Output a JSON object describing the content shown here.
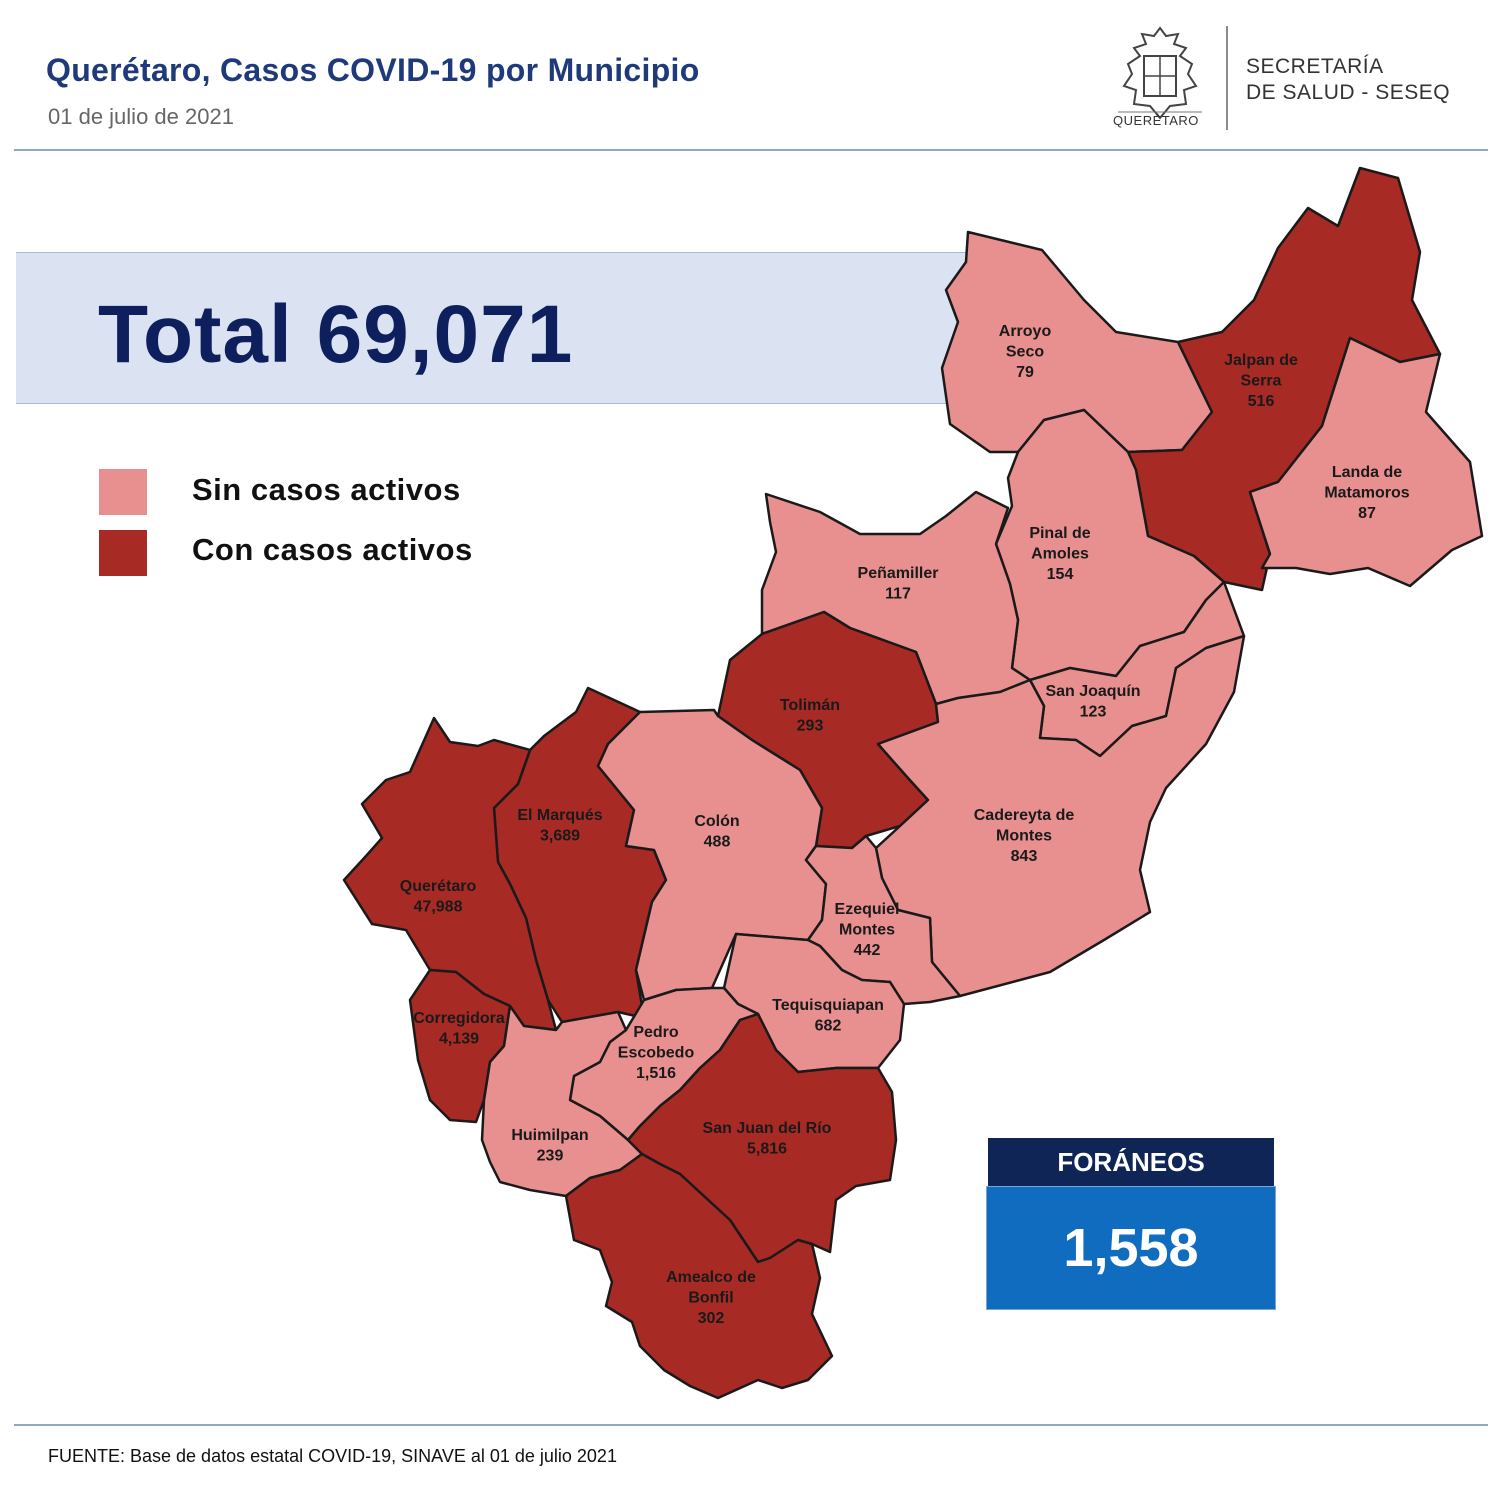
{
  "header": {
    "title": "Querétaro, Casos COVID-19 por Municipio",
    "date": "01 de julio de 2021",
    "logo_text": "QUERÉTARO",
    "secretaria_line1": "SECRETARÍA",
    "secretaria_line2": "DE SALUD - SESEQ"
  },
  "total": {
    "label": "Total 69,071"
  },
  "legend": {
    "items": [
      {
        "label": "Sin casos activos",
        "color": "#e8908f"
      },
      {
        "label": "Con casos activos",
        "color": "#a82a24"
      }
    ]
  },
  "colors": {
    "sin": "#e8908f",
    "con": "#a82a24",
    "border": "#1a1a1a"
  },
  "municipios": [
    {
      "key": "arroyo_seco",
      "lines": [
        "Arroyo",
        "Seco",
        "79"
      ],
      "cases": 79,
      "status": "sin"
    },
    {
      "key": "jalpan",
      "lines": [
        "Jalpan de",
        "Serra",
        "516"
      ],
      "cases": 516,
      "status": "con"
    },
    {
      "key": "landa",
      "lines": [
        "Landa de",
        "Matamoros",
        "87"
      ],
      "cases": 87,
      "status": "sin"
    },
    {
      "key": "pinal",
      "lines": [
        "Pinal de",
        "Amoles",
        "154"
      ],
      "cases": 154,
      "status": "sin"
    },
    {
      "key": "penamiller",
      "lines": [
        "Peñamiller",
        "117"
      ],
      "cases": 117,
      "status": "sin"
    },
    {
      "key": "san_joaquin",
      "lines": [
        "San Joaquín",
        "123"
      ],
      "cases": 123,
      "status": "sin"
    },
    {
      "key": "toliman",
      "lines": [
        "Tolimán",
        "293"
      ],
      "cases": 293,
      "status": "con"
    },
    {
      "key": "cadereyta",
      "lines": [
        "Cadereyta de",
        "Montes",
        "843"
      ],
      "cases": 843,
      "status": "sin"
    },
    {
      "key": "el_marques",
      "lines": [
        "El Marqués",
        "3,689"
      ],
      "cases": 3689,
      "status": "con"
    },
    {
      "key": "colon",
      "lines": [
        "Colón",
        "488"
      ],
      "cases": 488,
      "status": "sin"
    },
    {
      "key": "queretaro",
      "lines": [
        "Querétaro",
        "47,988"
      ],
      "cases": 47988,
      "status": "con"
    },
    {
      "key": "ezequiel",
      "lines": [
        "Ezequiel",
        "Montes",
        "442"
      ],
      "cases": 442,
      "status": "sin"
    },
    {
      "key": "tequisquiapan",
      "lines": [
        "Tequisquiapan",
        "682"
      ],
      "cases": 682,
      "status": "sin"
    },
    {
      "key": "corregidora",
      "lines": [
        "Corregidora",
        "4,139"
      ],
      "cases": 4139,
      "status": "con"
    },
    {
      "key": "pedro_escobedo",
      "lines": [
        "Pedro",
        "Escobedo",
        "1,516"
      ],
      "cases": 1516,
      "status": "sin"
    },
    {
      "key": "huimilpan",
      "lines": [
        "Huimilpan",
        "239"
      ],
      "cases": 239,
      "status": "sin"
    },
    {
      "key": "san_juan",
      "lines": [
        "San Juan del Río",
        "5,816"
      ],
      "cases": 5816,
      "status": "con"
    },
    {
      "key": "amealco",
      "lines": [
        "Amealco de",
        "Bonfil",
        "302"
      ],
      "cases": 302,
      "status": "con"
    }
  ],
  "foraneos": {
    "label": "FORÁNEOS",
    "value": "1,558"
  },
  "source": "FUENTE:  Base de datos estatal COVID-19,  SINAVE  al 01 de julio 2021"
}
